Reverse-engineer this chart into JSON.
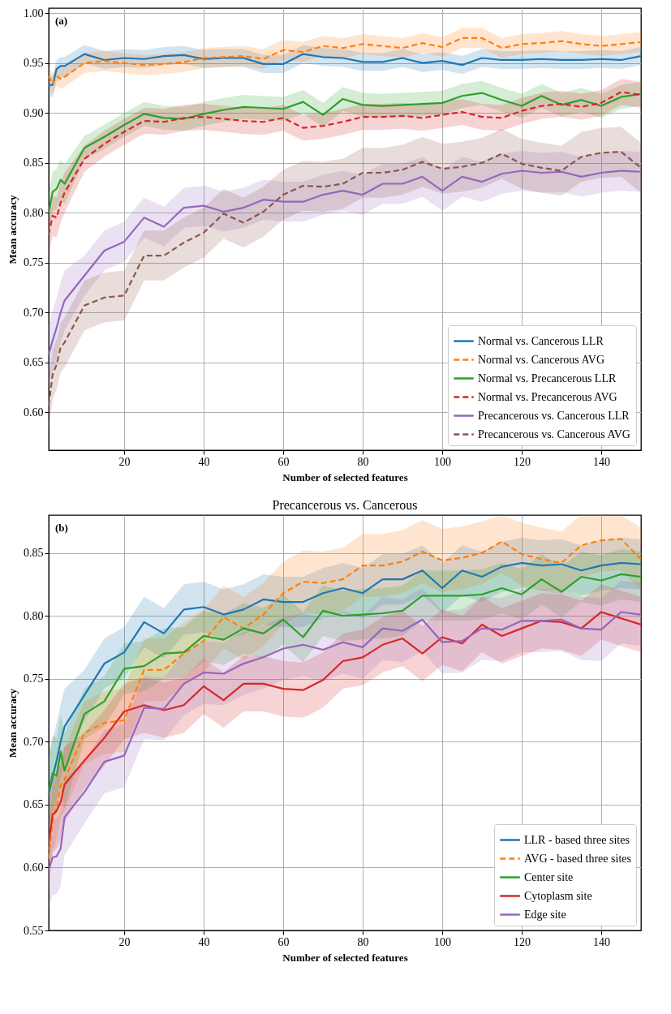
{
  "chart_data": [
    {
      "type": "line",
      "xlabel": "Number of selected features",
      "ylabel": "Mean accuracy",
      "annotations": [
        "(a)"
      ],
      "x": [
        1,
        2,
        3,
        4,
        5,
        10,
        15,
        20,
        25,
        30,
        35,
        40,
        45,
        50,
        55,
        60,
        65,
        70,
        75,
        80,
        85,
        90,
        95,
        100,
        105,
        110,
        115,
        120,
        125,
        130,
        135,
        140,
        145,
        150
      ],
      "xlim": [
        1,
        150
      ],
      "ylim": [
        0.562,
        1.005
      ],
      "xticks": [
        20,
        40,
        60,
        80,
        100,
        120,
        140
      ],
      "yticks": [
        {
          "value": 0.6,
          "label": "0.60"
        },
        0.65,
        {
          "value": 0.7,
          "label": "0.70"
        },
        0.75,
        {
          "value": 0.8,
          "label": "0.80"
        },
        0.85,
        {
          "value": 0.9,
          "label": "0.90"
        },
        0.95,
        {
          "value": 1,
          "label": "1.00"
        }
      ],
      "grid": true,
      "legend": "bottom right",
      "series": [
        {
          "name": "Normal vs. Cancerous LLR",
          "color": "#1f77b4",
          "line_style": "solid",
          "values": [
            0.928,
            0.928,
            0.944,
            0.947,
            0.947,
            0.959,
            0.953,
            0.955,
            0.954,
            0.957,
            0.958,
            0.954,
            0.955,
            0.955,
            0.949,
            0.949,
            0.959,
            0.956,
            0.955,
            0.951,
            0.951,
            0.955,
            0.95,
            0.952,
            0.948,
            0.955,
            0.953,
            0.953,
            0.954,
            0.953,
            0.953,
            0.954,
            0.953,
            0.957
          ],
          "lower": [
            0.916,
            0.916,
            0.932,
            0.935,
            0.935,
            0.95,
            0.944,
            0.946,
            0.945,
            0.948,
            0.949,
            0.945,
            0.946,
            0.946,
            0.94,
            0.94,
            0.95,
            0.947,
            0.946,
            0.942,
            0.942,
            0.946,
            0.941,
            0.943,
            0.939,
            0.946,
            0.944,
            0.944,
            0.945,
            0.944,
            0.944,
            0.945,
            0.944,
            0.948
          ],
          "upper": [
            0.937,
            0.937,
            0.953,
            0.956,
            0.956,
            0.968,
            0.962,
            0.964,
            0.963,
            0.966,
            0.967,
            0.963,
            0.964,
            0.964,
            0.958,
            0.958,
            0.968,
            0.965,
            0.964,
            0.96,
            0.96,
            0.964,
            0.959,
            0.961,
            0.957,
            0.964,
            0.962,
            0.962,
            0.963,
            0.962,
            0.962,
            0.963,
            0.962,
            0.966
          ]
        },
        {
          "name": "Normal vs. Cancerous AVG",
          "color": "#ff7f0e",
          "line_style": "dashed",
          "values": [
            0.937,
            0.929,
            0.937,
            0.934,
            0.936,
            0.95,
            0.952,
            0.95,
            0.948,
            0.949,
            0.951,
            0.955,
            0.956,
            0.957,
            0.954,
            0.963,
            0.961,
            0.967,
            0.965,
            0.969,
            0.967,
            0.965,
            0.97,
            0.966,
            0.975,
            0.975,
            0.965,
            0.969,
            0.97,
            0.972,
            0.969,
            0.967,
            0.969,
            0.971
          ],
          "lower": [
            0.927,
            0.919,
            0.927,
            0.924,
            0.926,
            0.94,
            0.942,
            0.94,
            0.938,
            0.939,
            0.941,
            0.945,
            0.946,
            0.947,
            0.944,
            0.953,
            0.951,
            0.957,
            0.955,
            0.959,
            0.957,
            0.955,
            0.96,
            0.956,
            0.965,
            0.965,
            0.955,
            0.959,
            0.96,
            0.962,
            0.959,
            0.957,
            0.959,
            0.961
          ],
          "upper": [
            0.947,
            0.939,
            0.947,
            0.944,
            0.946,
            0.96,
            0.962,
            0.96,
            0.958,
            0.959,
            0.961,
            0.965,
            0.966,
            0.967,
            0.964,
            0.973,
            0.971,
            0.977,
            0.975,
            0.979,
            0.977,
            0.975,
            0.98,
            0.976,
            0.985,
            0.985,
            0.975,
            0.979,
            0.98,
            0.982,
            0.979,
            0.977,
            0.979,
            0.981
          ]
        },
        {
          "name": "Normal vs. Precancerous LLR",
          "color": "#2ca02c",
          "line_style": "solid",
          "values": [
            0.8,
            0.821,
            0.824,
            0.833,
            0.829,
            0.865,
            0.876,
            0.888,
            0.899,
            0.895,
            0.894,
            0.899,
            0.903,
            0.906,
            0.905,
            0.904,
            0.911,
            0.898,
            0.914,
            0.908,
            0.907,
            0.908,
            0.909,
            0.91,
            0.917,
            0.92,
            0.913,
            0.907,
            0.917,
            0.908,
            0.913,
            0.907,
            0.916,
            0.919
          ],
          "lower": [
            0.78,
            0.801,
            0.804,
            0.813,
            0.809,
            0.853,
            0.864,
            0.876,
            0.887,
            0.883,
            0.882,
            0.887,
            0.891,
            0.894,
            0.893,
            0.892,
            0.899,
            0.886,
            0.902,
            0.896,
            0.895,
            0.896,
            0.897,
            0.898,
            0.905,
            0.908,
            0.901,
            0.895,
            0.905,
            0.896,
            0.901,
            0.895,
            0.904,
            0.907
          ],
          "upper": [
            0.82,
            0.841,
            0.844,
            0.853,
            0.849,
            0.877,
            0.888,
            0.9,
            0.911,
            0.907,
            0.906,
            0.911,
            0.915,
            0.918,
            0.917,
            0.916,
            0.923,
            0.91,
            0.926,
            0.92,
            0.919,
            0.92,
            0.921,
            0.922,
            0.929,
            0.932,
            0.925,
            0.919,
            0.929,
            0.92,
            0.925,
            0.919,
            0.928,
            0.931
          ]
        },
        {
          "name": "Normal vs. Precancerous AVG",
          "color": "#d62728",
          "line_style": "dashed",
          "values": [
            0.778,
            0.797,
            0.795,
            0.81,
            0.82,
            0.854,
            0.869,
            0.881,
            0.892,
            0.891,
            0.895,
            0.896,
            0.894,
            0.892,
            0.891,
            0.895,
            0.885,
            0.887,
            0.891,
            0.896,
            0.896,
            0.897,
            0.895,
            0.898,
            0.901,
            0.896,
            0.895,
            0.902,
            0.907,
            0.909,
            0.906,
            0.91,
            0.921,
            0.918
          ],
          "lower": [
            0.758,
            0.777,
            0.775,
            0.79,
            0.8,
            0.841,
            0.856,
            0.868,
            0.879,
            0.878,
            0.882,
            0.883,
            0.881,
            0.879,
            0.878,
            0.882,
            0.872,
            0.874,
            0.878,
            0.883,
            0.883,
            0.884,
            0.882,
            0.885,
            0.888,
            0.883,
            0.882,
            0.889,
            0.894,
            0.896,
            0.893,
            0.897,
            0.908,
            0.905
          ],
          "upper": [
            0.798,
            0.817,
            0.815,
            0.83,
            0.84,
            0.867,
            0.882,
            0.894,
            0.905,
            0.904,
            0.908,
            0.909,
            0.907,
            0.905,
            0.904,
            0.908,
            0.898,
            0.9,
            0.904,
            0.909,
            0.909,
            0.91,
            0.908,
            0.911,
            0.914,
            0.909,
            0.908,
            0.915,
            0.92,
            0.922,
            0.919,
            0.923,
            0.934,
            0.931
          ]
        },
        {
          "name": "Precancerous vs. Cancerous LLR",
          "color": "#9467bd",
          "line_style": "solid",
          "values": [
            0.658,
            0.672,
            0.685,
            0.7,
            0.712,
            0.737,
            0.762,
            0.771,
            0.795,
            0.786,
            0.805,
            0.807,
            0.801,
            0.805,
            0.813,
            0.811,
            0.811,
            0.818,
            0.822,
            0.818,
            0.829,
            0.829,
            0.836,
            0.822,
            0.836,
            0.831,
            0.839,
            0.842,
            0.84,
            0.841,
            0.836,
            0.84,
            0.842,
            0.841
          ],
          "lower": [
            0.628,
            0.642,
            0.655,
            0.67,
            0.682,
            0.717,
            0.742,
            0.751,
            0.775,
            0.766,
            0.785,
            0.787,
            0.781,
            0.785,
            0.793,
            0.791,
            0.791,
            0.798,
            0.802,
            0.798,
            0.809,
            0.809,
            0.816,
            0.802,
            0.816,
            0.811,
            0.819,
            0.822,
            0.82,
            0.821,
            0.816,
            0.82,
            0.822,
            0.821
          ],
          "upper": [
            0.688,
            0.702,
            0.715,
            0.73,
            0.742,
            0.757,
            0.782,
            0.791,
            0.815,
            0.806,
            0.825,
            0.827,
            0.821,
            0.825,
            0.833,
            0.831,
            0.831,
            0.838,
            0.842,
            0.838,
            0.849,
            0.849,
            0.856,
            0.842,
            0.856,
            0.851,
            0.859,
            0.862,
            0.86,
            0.861,
            0.856,
            0.86,
            0.862,
            0.861
          ]
        },
        {
          "name": "Precancerous vs. Cancerous AVG",
          "color": "#8c564b",
          "line_style": "dashed",
          "values": [
            0.607,
            0.638,
            0.648,
            0.665,
            0.67,
            0.707,
            0.715,
            0.717,
            0.757,
            0.757,
            0.77,
            0.78,
            0.799,
            0.79,
            0.801,
            0.818,
            0.827,
            0.826,
            0.829,
            0.84,
            0.84,
            0.843,
            0.851,
            0.844,
            0.846,
            0.85,
            0.859,
            0.849,
            0.845,
            0.842,
            0.856,
            0.86,
            0.861,
            0.845
          ],
          "lower": [
            0.582,
            0.613,
            0.623,
            0.64,
            0.645,
            0.682,
            0.69,
            0.692,
            0.732,
            0.732,
            0.745,
            0.755,
            0.774,
            0.765,
            0.776,
            0.793,
            0.802,
            0.801,
            0.804,
            0.815,
            0.815,
            0.818,
            0.826,
            0.819,
            0.821,
            0.825,
            0.834,
            0.824,
            0.82,
            0.817,
            0.831,
            0.835,
            0.836,
            0.82
          ],
          "upper": [
            0.632,
            0.663,
            0.673,
            0.69,
            0.695,
            0.732,
            0.74,
            0.742,
            0.782,
            0.782,
            0.795,
            0.805,
            0.824,
            0.815,
            0.826,
            0.843,
            0.852,
            0.851,
            0.854,
            0.865,
            0.865,
            0.868,
            0.876,
            0.869,
            0.871,
            0.875,
            0.884,
            0.874,
            0.87,
            0.867,
            0.881,
            0.885,
            0.886,
            0.87
          ]
        }
      ]
    },
    {
      "type": "line",
      "title": "Precancerous vs. Cancerous",
      "xlabel": "Number of selected features",
      "ylabel": "Mean accuracy",
      "annotations": [
        "(b)"
      ],
      "x": [
        1,
        2,
        3,
        4,
        5,
        10,
        15,
        20,
        25,
        30,
        35,
        40,
        45,
        50,
        55,
        60,
        65,
        70,
        75,
        80,
        85,
        90,
        95,
        100,
        105,
        110,
        115,
        120,
        125,
        130,
        135,
        140,
        145,
        150
      ],
      "xlim": [
        1,
        150
      ],
      "ylim": [
        0.55,
        0.88
      ],
      "xticks": [
        20,
        40,
        60,
        80,
        100,
        120,
        140
      ],
      "yticks": [
        0.55,
        {
          "value": 0.6,
          "label": "0.60"
        },
        0.65,
        {
          "value": 0.7,
          "label": "0.70"
        },
        0.75,
        {
          "value": 0.8,
          "label": "0.80"
        },
        0.85
      ],
      "grid": true,
      "legend": "bottom right",
      "series": [
        {
          "name": "LLR - based three sites",
          "color": "#1f77b4",
          "line_style": "solid",
          "values": [
            0.658,
            0.672,
            0.685,
            0.7,
            0.712,
            0.737,
            0.762,
            0.771,
            0.795,
            0.786,
            0.805,
            0.807,
            0.801,
            0.805,
            0.813,
            0.811,
            0.811,
            0.818,
            0.822,
            0.818,
            0.829,
            0.829,
            0.836,
            0.822,
            0.836,
            0.831,
            0.839,
            0.842,
            0.84,
            0.841,
            0.836,
            0.84,
            0.842,
            0.841
          ],
          "lower": [
            0.628,
            0.642,
            0.655,
            0.67,
            0.682,
            0.717,
            0.742,
            0.751,
            0.775,
            0.766,
            0.785,
            0.787,
            0.781,
            0.785,
            0.793,
            0.791,
            0.791,
            0.798,
            0.802,
            0.798,
            0.809,
            0.809,
            0.816,
            0.802,
            0.816,
            0.811,
            0.819,
            0.822,
            0.82,
            0.821,
            0.816,
            0.82,
            0.822,
            0.821
          ],
          "upper": [
            0.688,
            0.702,
            0.715,
            0.73,
            0.742,
            0.757,
            0.782,
            0.791,
            0.815,
            0.806,
            0.825,
            0.827,
            0.821,
            0.825,
            0.833,
            0.831,
            0.831,
            0.838,
            0.842,
            0.838,
            0.849,
            0.849,
            0.856,
            0.842,
            0.856,
            0.851,
            0.859,
            0.862,
            0.86,
            0.861,
            0.856,
            0.86,
            0.862,
            0.861
          ]
        },
        {
          "name": "AVG - based three sites",
          "color": "#ff7f0e",
          "line_style": "dashed",
          "values": [
            0.607,
            0.638,
            0.648,
            0.665,
            0.67,
            0.707,
            0.715,
            0.717,
            0.757,
            0.757,
            0.77,
            0.78,
            0.799,
            0.79,
            0.801,
            0.818,
            0.827,
            0.826,
            0.829,
            0.84,
            0.84,
            0.843,
            0.851,
            0.844,
            0.846,
            0.85,
            0.859,
            0.849,
            0.845,
            0.842,
            0.856,
            0.86,
            0.861,
            0.845
          ],
          "lower": [
            0.582,
            0.613,
            0.623,
            0.64,
            0.645,
            0.682,
            0.69,
            0.692,
            0.732,
            0.732,
            0.745,
            0.755,
            0.774,
            0.765,
            0.776,
            0.793,
            0.802,
            0.801,
            0.804,
            0.815,
            0.815,
            0.818,
            0.826,
            0.819,
            0.821,
            0.825,
            0.834,
            0.824,
            0.82,
            0.817,
            0.831,
            0.835,
            0.836,
            0.82
          ],
          "upper": [
            0.632,
            0.663,
            0.673,
            0.69,
            0.695,
            0.732,
            0.74,
            0.742,
            0.782,
            0.782,
            0.795,
            0.805,
            0.824,
            0.815,
            0.826,
            0.843,
            0.852,
            0.851,
            0.854,
            0.865,
            0.865,
            0.868,
            0.876,
            0.869,
            0.871,
            0.875,
            0.88,
            0.874,
            0.87,
            0.867,
            0.88,
            0.88,
            0.88,
            0.87
          ]
        },
        {
          "name": "Center site",
          "color": "#2ca02c",
          "line_style": "solid",
          "values": [
            0.66,
            0.675,
            0.673,
            0.692,
            0.677,
            0.722,
            0.732,
            0.758,
            0.76,
            0.77,
            0.771,
            0.784,
            0.781,
            0.79,
            0.786,
            0.797,
            0.783,
            0.804,
            0.8,
            0.801,
            0.802,
            0.804,
            0.816,
            0.816,
            0.816,
            0.817,
            0.822,
            0.817,
            0.829,
            0.819,
            0.831,
            0.828,
            0.833,
            0.831
          ],
          "lower": [
            0.63,
            0.645,
            0.643,
            0.662,
            0.647,
            0.702,
            0.712,
            0.738,
            0.74,
            0.75,
            0.751,
            0.764,
            0.761,
            0.77,
            0.766,
            0.777,
            0.763,
            0.784,
            0.78,
            0.781,
            0.782,
            0.784,
            0.796,
            0.796,
            0.796,
            0.797,
            0.802,
            0.797,
            0.809,
            0.799,
            0.811,
            0.808,
            0.813,
            0.811
          ],
          "upper": [
            0.69,
            0.705,
            0.703,
            0.722,
            0.707,
            0.742,
            0.752,
            0.778,
            0.78,
            0.79,
            0.791,
            0.804,
            0.801,
            0.81,
            0.806,
            0.817,
            0.803,
            0.824,
            0.82,
            0.821,
            0.822,
            0.824,
            0.836,
            0.836,
            0.836,
            0.837,
            0.842,
            0.837,
            0.849,
            0.839,
            0.851,
            0.848,
            0.853,
            0.851
          ]
        },
        {
          "name": "Cytoplasm site",
          "color": "#d62728",
          "line_style": "solid",
          "values": [
            0.62,
            0.642,
            0.645,
            0.652,
            0.666,
            0.685,
            0.703,
            0.724,
            0.729,
            0.725,
            0.729,
            0.744,
            0.733,
            0.746,
            0.746,
            0.742,
            0.741,
            0.749,
            0.764,
            0.767,
            0.777,
            0.782,
            0.77,
            0.783,
            0.778,
            0.793,
            0.784,
            0.79,
            0.796,
            0.795,
            0.79,
            0.803,
            0.798,
            0.793
          ],
          "lower": [
            0.59,
            0.612,
            0.615,
            0.622,
            0.636,
            0.663,
            0.681,
            0.702,
            0.707,
            0.703,
            0.707,
            0.722,
            0.711,
            0.724,
            0.724,
            0.72,
            0.719,
            0.727,
            0.742,
            0.745,
            0.755,
            0.76,
            0.748,
            0.761,
            0.756,
            0.771,
            0.762,
            0.768,
            0.774,
            0.773,
            0.768,
            0.781,
            0.776,
            0.771
          ],
          "upper": [
            0.65,
            0.672,
            0.675,
            0.682,
            0.696,
            0.707,
            0.725,
            0.746,
            0.751,
            0.747,
            0.751,
            0.766,
            0.755,
            0.768,
            0.768,
            0.764,
            0.763,
            0.771,
            0.786,
            0.789,
            0.799,
            0.804,
            0.792,
            0.805,
            0.8,
            0.815,
            0.806,
            0.812,
            0.818,
            0.817,
            0.812,
            0.825,
            0.82,
            0.815
          ]
        },
        {
          "name": "Edge site",
          "color": "#9467bd",
          "line_style": "solid",
          "values": [
            0.598,
            0.608,
            0.609,
            0.615,
            0.64,
            0.66,
            0.684,
            0.689,
            0.727,
            0.726,
            0.746,
            0.755,
            0.754,
            0.762,
            0.767,
            0.774,
            0.777,
            0.773,
            0.779,
            0.775,
            0.79,
            0.788,
            0.797,
            0.779,
            0.78,
            0.79,
            0.789,
            0.796,
            0.796,
            0.797,
            0.79,
            0.789,
            0.803,
            0.801
          ],
          "lower": [
            0.568,
            0.578,
            0.579,
            0.585,
            0.61,
            0.635,
            0.659,
            0.664,
            0.702,
            0.701,
            0.721,
            0.73,
            0.729,
            0.737,
            0.742,
            0.749,
            0.752,
            0.748,
            0.754,
            0.75,
            0.765,
            0.763,
            0.772,
            0.754,
            0.755,
            0.765,
            0.764,
            0.771,
            0.771,
            0.772,
            0.765,
            0.764,
            0.778,
            0.776
          ],
          "upper": [
            0.628,
            0.638,
            0.639,
            0.645,
            0.67,
            0.685,
            0.709,
            0.714,
            0.752,
            0.751,
            0.771,
            0.78,
            0.779,
            0.787,
            0.792,
            0.799,
            0.802,
            0.798,
            0.804,
            0.8,
            0.815,
            0.813,
            0.822,
            0.804,
            0.805,
            0.815,
            0.814,
            0.821,
            0.821,
            0.822,
            0.815,
            0.814,
            0.828,
            0.826
          ]
        }
      ]
    }
  ]
}
